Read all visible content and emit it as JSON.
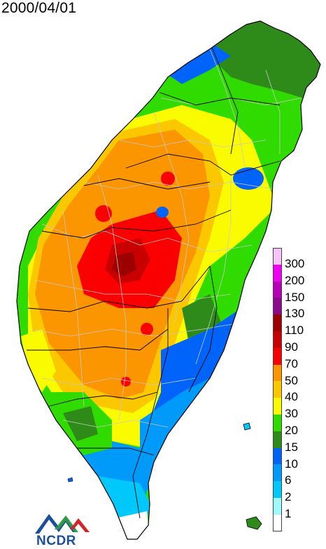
{
  "title": "2000/04/01",
  "legend": {
    "classes": [
      {
        "label": "300",
        "color": "#f9c2f9"
      },
      {
        "label": "200",
        "color": "#f100f1"
      },
      {
        "label": "150",
        "color": "#b700b7"
      },
      {
        "label": "130",
        "color": "#8b0a8b"
      },
      {
        "label": "110",
        "color": "#9c0000"
      },
      {
        "label": "90",
        "color": "#c80000"
      },
      {
        "label": "70",
        "color": "#fb0000"
      },
      {
        "label": "50",
        "color": "#fb9600"
      },
      {
        "label": "40",
        "color": "#fbc800"
      },
      {
        "label": "30",
        "color": "#fbfb00"
      },
      {
        "label": "20",
        "color": "#30dc00"
      },
      {
        "label": "15",
        "color": "#2e8b1a"
      },
      {
        "label": "10",
        "color": "#0064fb"
      },
      {
        "label": "6",
        "color": "#009afb"
      },
      {
        "label": "2",
        "color": "#00c8fb"
      },
      {
        "label": "1",
        "color": "#9ffbfb"
      },
      {
        "label": "",
        "color": "#ffffff"
      }
    ]
  },
  "logo": {
    "text": "NCDR",
    "colors": {
      "blue": "#1a4f9c",
      "green": "#2f9a48",
      "red": "#d5232c"
    }
  }
}
